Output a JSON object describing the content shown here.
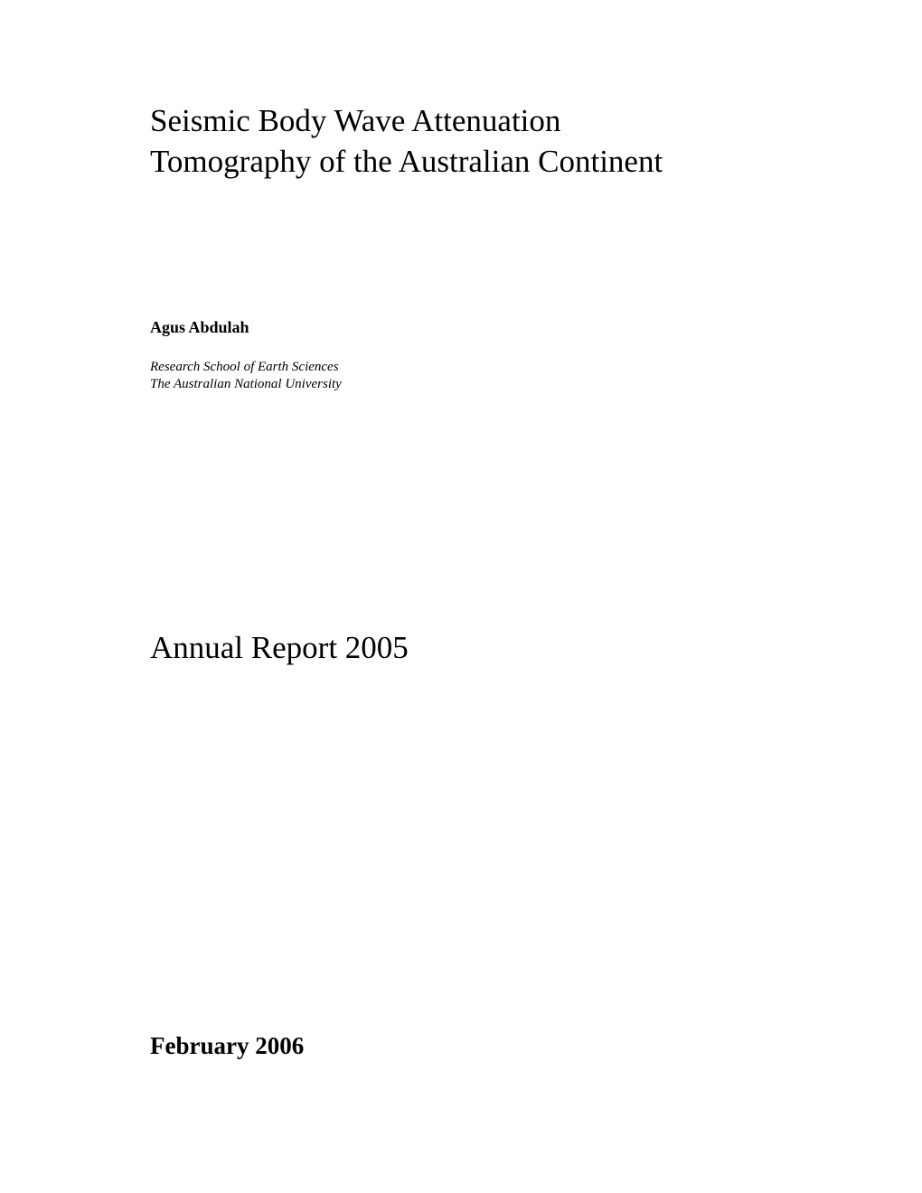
{
  "title": {
    "line1": "Seismic Body Wave Attenuation",
    "line2": "Tomography of the Australian Continent"
  },
  "author": {
    "name": "Agus Abdulah",
    "affiliation_line1": "Research School of Earth Sciences",
    "affiliation_line2": "The Australian National University"
  },
  "report_label": "Annual Report 2005",
  "date": "February 2006",
  "colors": {
    "background": "#ffffff",
    "text": "#000000"
  },
  "typography": {
    "font_family": "Times New Roman",
    "title_fontsize": 35,
    "author_fontsize": 18,
    "affiliation_fontsize": 15,
    "report_fontsize": 35,
    "date_fontsize": 27
  }
}
